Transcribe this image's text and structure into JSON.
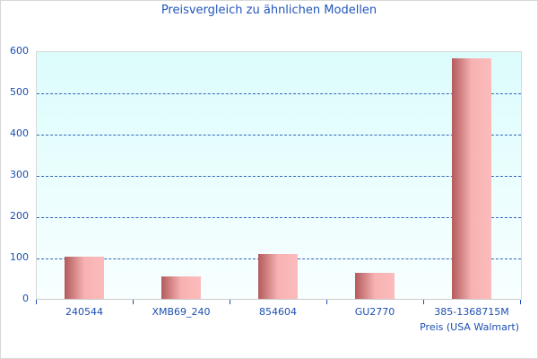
{
  "chart_data": {
    "type": "bar",
    "title": "Preisvergleich zu ähnlichen Modellen",
    "categories": [
      "240544",
      "XMB69_240",
      "854604",
      "GU2770",
      "385-1368715M"
    ],
    "series": [
      {
        "name": "Preis (USA Walmart)",
        "values": [
          102,
          54,
          108,
          63,
          583
        ]
      }
    ],
    "xlabel": "",
    "ylabel": "",
    "ylim": [
      0,
      600
    ],
    "yticks": [
      "0",
      "100",
      "200",
      "300",
      "400",
      "500",
      "600"
    ],
    "grid": true,
    "legend_position": "bottom-right",
    "colors": {
      "bar_dark": "#b35a5c",
      "bar_light": "#fcbcbc",
      "text": "#1c4fb0",
      "grid": "#3366bb"
    }
  }
}
